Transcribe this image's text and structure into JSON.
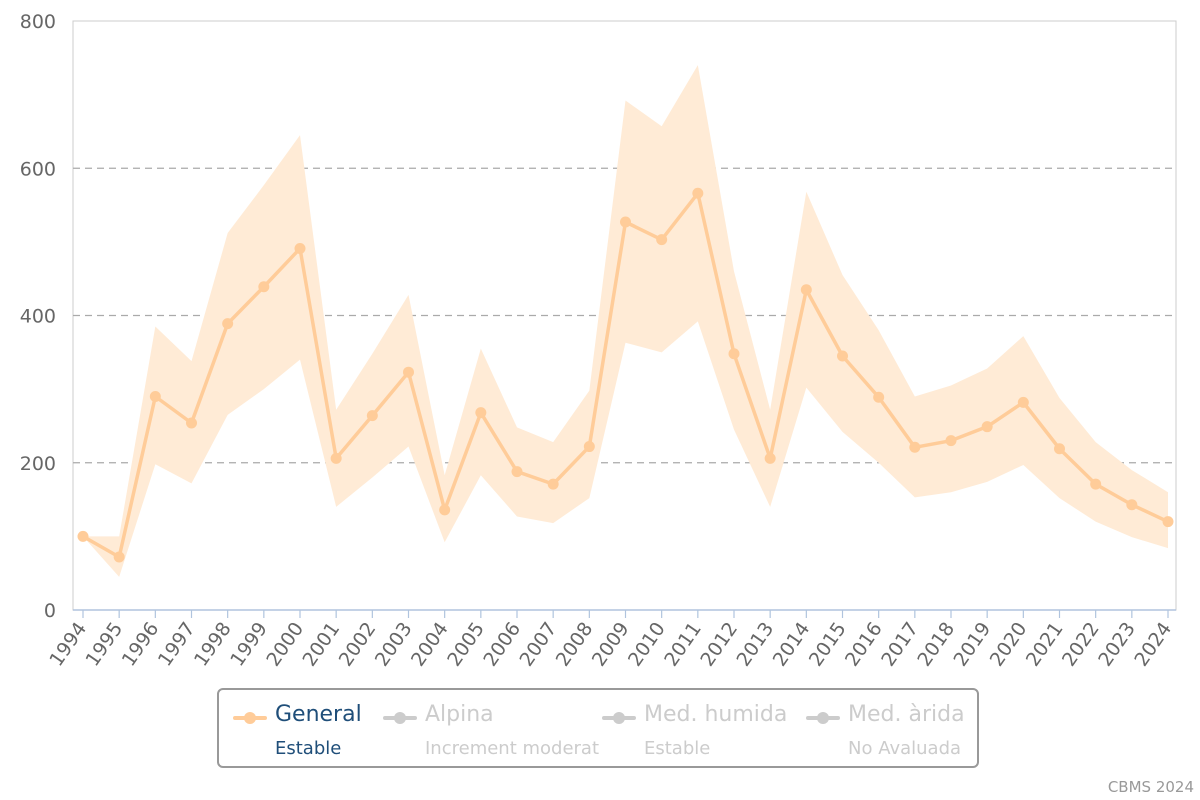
{
  "chart_data": {
    "type": "line",
    "x": [
      "1994",
      "1995",
      "1996",
      "1997",
      "1998",
      "1999",
      "2000",
      "2001",
      "2002",
      "2003",
      "2004",
      "2005",
      "2006",
      "2007",
      "2008",
      "2009",
      "2010",
      "2011",
      "2012",
      "2013",
      "2014",
      "2015",
      "2016",
      "2017",
      "2018",
      "2019",
      "2020",
      "2021",
      "2022",
      "2023",
      "2024"
    ],
    "series": [
      {
        "name": "General",
        "values": [
          100,
          72,
          290,
          254,
          389,
          439,
          491,
          206,
          264,
          323,
          136,
          268,
          188,
          171,
          222,
          527,
          503,
          566,
          348,
          206,
          435,
          345,
          289,
          221,
          230,
          249,
          282,
          219,
          171,
          143,
          120
        ],
        "band_lower": [
          100,
          45,
          198,
          172,
          265,
          300,
          340,
          140,
          180,
          222,
          92,
          183,
          127,
          118,
          152,
          363,
          350,
          392,
          245,
          140,
          302,
          242,
          200,
          153,
          160,
          174,
          197,
          152,
          120,
          99,
          84
        ],
        "band_upper": [
          100,
          100,
          385,
          338,
          512,
          577,
          645,
          272,
          348,
          428,
          183,
          355,
          248,
          228,
          298,
          692,
          657,
          740,
          460,
          272,
          568,
          455,
          380,
          290,
          305,
          328,
          372,
          288,
          228,
          190,
          160
        ],
        "color": "#ffcc99",
        "band_color": "#ffebd6"
      }
    ],
    "ylim": [
      0,
      800
    ],
    "yticks": [
      0,
      200,
      400,
      600,
      800
    ],
    "grid": true,
    "legend_position": "bottom-center"
  },
  "legend": {
    "items": [
      {
        "name": "General",
        "status": "Estable",
        "active": true
      },
      {
        "name": "Alpina",
        "status": "Increment moderat",
        "active": false
      },
      {
        "name": "Med. humida",
        "status": "Estable",
        "active": false
      },
      {
        "name": "Med. àrida",
        "status": "No Avaluada",
        "active": false
      }
    ]
  },
  "credit": "CBMS 2024",
  "colors": {
    "active_line": "#ffcc99",
    "active_text": "#1f4e79",
    "inactive": "#cccccc",
    "axis": "#b0c4de",
    "grid": "#aaaaaa"
  }
}
